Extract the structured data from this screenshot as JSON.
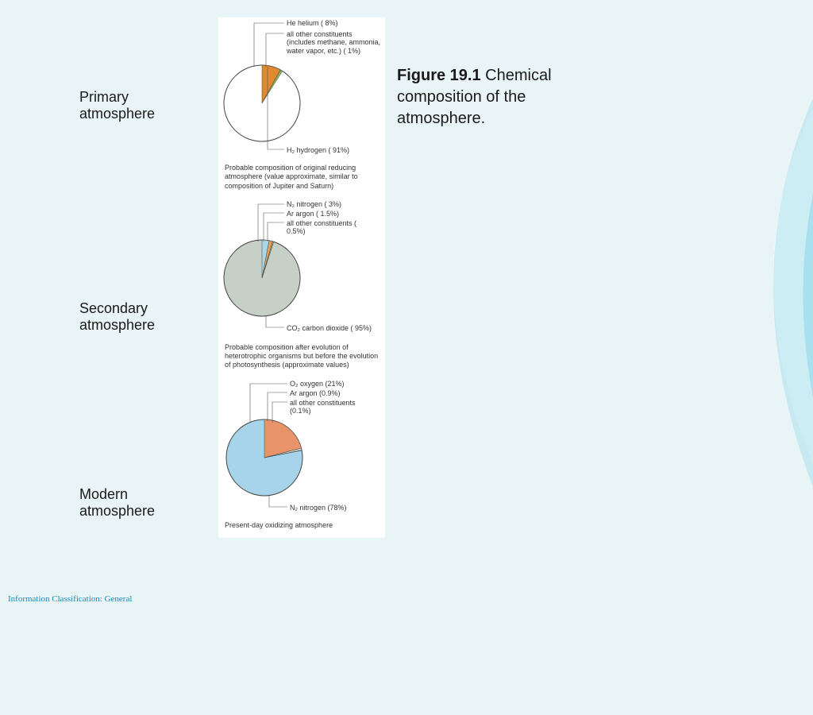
{
  "background": {
    "base_color": "#e9f4f7",
    "swoosh_colors": [
      "#ffffff",
      "#b8e6ef",
      "#8fd9e8",
      "#c9ecf2"
    ]
  },
  "title": {
    "figure_label": "Figure 19.1",
    "text": " Chemical composition of the atmosphere."
  },
  "left_labels": {
    "primary": "Primary atmosphere",
    "secondary": "Secondary atmosphere",
    "modern": "Modern atmosphere"
  },
  "footer": "Information Classification: General",
  "charts": {
    "primary": {
      "type": "pie",
      "radius": 48,
      "stroke": "#444444",
      "bg_fill": "#ffffff",
      "slices": [
        {
          "label": "He helium ( 8%)",
          "value": 8,
          "color": "#e08a2e"
        },
        {
          "label": "all other constituents (includes methane, ammonia, water vapor, etc.) ( 1%)",
          "value": 1,
          "color": "#8aaf5b"
        },
        {
          "label": "H₂ hydrogen ( 91%)",
          "value": 91,
          "color": "#ffffff"
        }
      ],
      "caption": "Probable composition of original reducing atmosphere (value approximate, similar to composition of Jupiter and Saturn)"
    },
    "secondary": {
      "type": "pie",
      "radius": 48,
      "stroke": "#444444",
      "bg_fill": "#c6d0c6",
      "slices": [
        {
          "label": "N₂ nitrogen ( 3%)",
          "value": 3,
          "color": "#a7d9e8"
        },
        {
          "label": "Ar argon ( 1.5%)",
          "value": 1.5,
          "color": "#e8a060"
        },
        {
          "label": "all other constituents ( 0.5%)",
          "value": 0.5,
          "color": "#8aaf5b"
        },
        {
          "label": "CO₂  carbon dioxide ( 95%)",
          "value": 95,
          "color": "#c6d0c6"
        }
      ],
      "caption": "Probable composition after evolution of heterotrophic organisms but before the evolution of photosynthesis (approximate values)"
    },
    "modern": {
      "type": "pie",
      "radius": 48,
      "stroke": "#444444",
      "bg_fill": "#a7d4eb",
      "slices": [
        {
          "label": "O₂ oxygen (21%)",
          "value": 21,
          "color": "#e8936a"
        },
        {
          "label": "Ar argon (0.9%)",
          "value": 0.9,
          "color": "#c6d0c6"
        },
        {
          "label": "all other constituents (0.1%)",
          "value": 0.1,
          "color": "#8aaf5b"
        },
        {
          "label": "N₂ nitrogen (78%)",
          "value": 78,
          "color": "#a7d4eb"
        }
      ],
      "caption": "Present-day oxidizing atmosphere"
    }
  },
  "label_fontsize": 9,
  "caption_fontsize": 9,
  "leftlabel_fontsize": 18,
  "title_fontsize": 20
}
